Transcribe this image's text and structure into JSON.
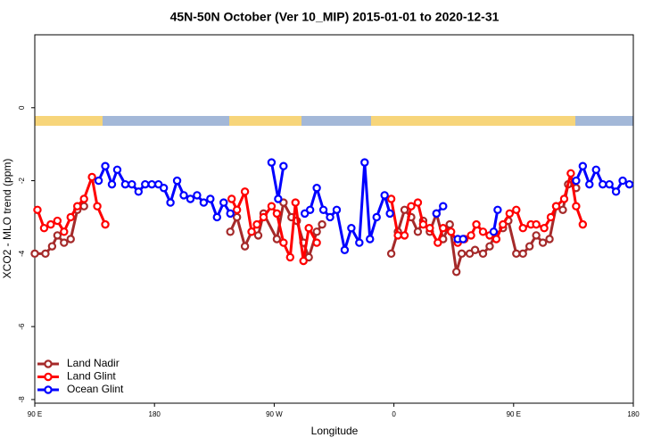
{
  "chart_data": {
    "type": "line",
    "title": "45N-50N October (Ver 10_MIP)   2015-01-01 to 2020-12-31",
    "x_label": "Longitude",
    "y_label": "XCO2 - MLO trend (ppm)",
    "xlim": [
      90,
      540
    ],
    "ylim": [
      -8.1,
      2
    ],
    "xticks": [
      {
        "value": 90,
        "label": "90 E"
      },
      {
        "value": 180,
        "label": "180"
      },
      {
        "value": 270,
        "label": "90 W"
      },
      {
        "value": 360,
        "label": "0"
      },
      {
        "value": 450,
        "label": "90 E"
      },
      {
        "value": 540,
        "label": "180"
      }
    ],
    "yticks": [
      0,
      -2,
      -4,
      -6,
      -8
    ],
    "legend": "bottom-left",
    "series": [
      {
        "name": "Land Nadir",
        "color": "#a52a2a",
        "x": [
          90,
          98,
          103,
          107,
          112,
          117,
          122,
          127,
          null,
          237,
          242,
          248,
          253,
          258,
          262,
          272,
          277,
          283,
          287,
          292,
          296,
          302,
          306,
          null,
          358,
          363,
          368,
          373,
          378,
          382,
          387,
          392,
          397,
          402,
          407,
          411,
          417,
          421,
          427,
          432,
          436,
          442,
          446,
          452,
          457,
          462,
          467,
          472,
          477,
          482,
          487,
          491,
          497
        ],
        "values": [
          -4.0,
          -4.0,
          -3.8,
          -3.5,
          -3.7,
          -3.6,
          -2.8,
          -2.7,
          null,
          -3.4,
          -3.0,
          -3.8,
          -3.4,
          -3.5,
          -2.9,
          -3.6,
          -2.6,
          -3.0,
          -3.1,
          -3.7,
          -4.1,
          -3.4,
          -3.2,
          null,
          -4.0,
          -3.4,
          -2.8,
          -3.0,
          -3.4,
          -3.1,
          -3.4,
          -2.9,
          -3.6,
          -3.2,
          -4.5,
          -4.0,
          -4.0,
          -3.9,
          -4.0,
          -3.8,
          -3.5,
          -3.3,
          -3.1,
          -4.0,
          -4.0,
          -3.8,
          -3.5,
          -3.7,
          -3.6,
          -2.7,
          -2.8,
          -2.1,
          -2.2
        ]
      },
      {
        "name": "Land Glint",
        "color": "#ff0000",
        "x": [
          92,
          97,
          102,
          107,
          112,
          117,
          122,
          127,
          133,
          137,
          143,
          null,
          238,
          242,
          248,
          253,
          257,
          262,
          268,
          272,
          277,
          282,
          286,
          292,
          296,
          302,
          null,
          358,
          363,
          368,
          373,
          378,
          382,
          387,
          393,
          397,
          403,
          408,
          413,
          418,
          422,
          427,
          432,
          437,
          442,
          447,
          452,
          457,
          463,
          467,
          473,
          478,
          482,
          488,
          493,
          497,
          502
        ],
        "values": [
          -2.8,
          -3.3,
          -3.2,
          -3.1,
          -3.4,
          -3.0,
          -2.7,
          -2.5,
          -1.9,
          -2.7,
          -3.2,
          null,
          -2.5,
          -2.8,
          -2.3,
          -3.4,
          -3.2,
          -3.0,
          -2.7,
          -2.9,
          -3.7,
          -4.1,
          -2.6,
          -4.2,
          -3.3,
          -3.7,
          null,
          -2.5,
          -3.5,
          -3.5,
          -2.7,
          -2.6,
          -3.2,
          -3.3,
          -3.7,
          -3.3,
          -3.4,
          -3.7,
          -3.6,
          -3.5,
          -3.2,
          -3.4,
          -3.5,
          -3.6,
          -3.2,
          -2.9,
          -2.8,
          -3.3,
          -3.2,
          -3.2,
          -3.3,
          -3.0,
          -2.7,
          -2.5,
          -1.8,
          -2.7,
          -3.2
        ]
      },
      {
        "name": "Ocean Glint",
        "color": "#0000ff",
        "x": [
          138,
          143,
          148,
          152,
          158,
          163,
          168,
          173,
          178,
          183,
          187,
          192,
          197,
          202,
          207,
          212,
          217,
          222,
          227,
          232,
          237,
          null,
          268,
          273,
          277,
          null,
          293,
          297,
          302,
          307,
          312,
          317,
          323,
          328,
          334,
          338,
          342,
          347,
          353,
          357,
          null,
          392,
          397,
          null,
          408,
          412,
          null,
          435,
          438,
          null,
          497,
          502,
          507,
          512,
          517,
          522,
          527,
          532,
          537
        ],
        "values": [
          -2.0,
          -1.6,
          -2.1,
          -1.7,
          -2.1,
          -2.1,
          -2.3,
          -2.1,
          -2.1,
          -2.1,
          -2.2,
          -2.6,
          -2.0,
          -2.4,
          -2.5,
          -2.4,
          -2.6,
          -2.5,
          -3.0,
          -2.6,
          -2.9,
          null,
          -1.5,
          -2.5,
          -1.6,
          null,
          -2.9,
          -2.8,
          -2.2,
          -2.8,
          -3.0,
          -2.8,
          -3.9,
          -3.3,
          -3.7,
          -1.5,
          -3.6,
          -3.0,
          -2.4,
          -2.9,
          null,
          -2.9,
          -2.7,
          null,
          -3.6,
          -3.6,
          null,
          -3.4,
          -2.8,
          null,
          -2.0,
          -1.6,
          -2.1,
          -1.7,
          -2.1,
          -2.1,
          -2.3,
          -2.0,
          -2.1
        ]
      }
    ]
  }
}
